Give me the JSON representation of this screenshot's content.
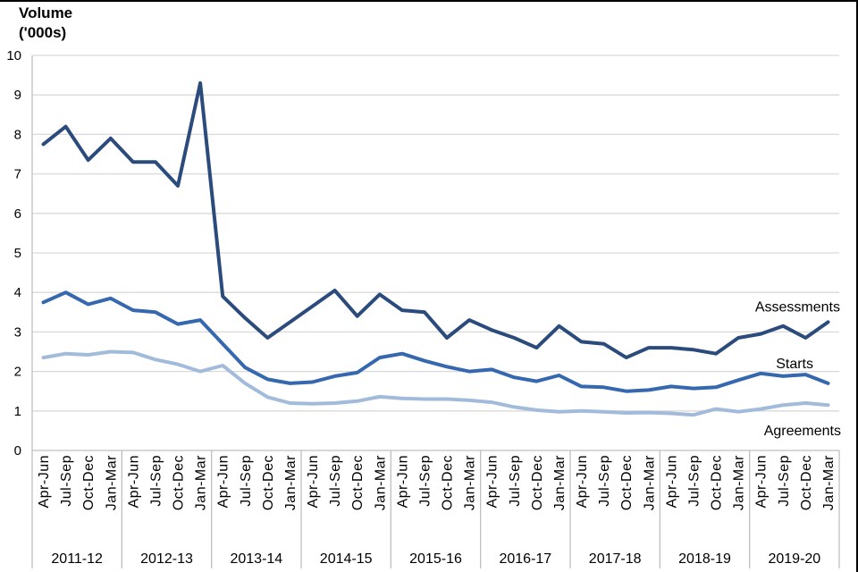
{
  "figure": {
    "title_line1": "Volume",
    "title_line2": "('000s)"
  },
  "chart_data": {
    "type": "line",
    "title": "Volume ('000s)",
    "ylabel": "Volume ('000s)",
    "xlabel": "",
    "ylim": [
      0,
      10
    ],
    "yticks": [
      0,
      1,
      2,
      3,
      4,
      5,
      6,
      7,
      8,
      9,
      10
    ],
    "grid": true,
    "legend_position": "inline-right-of-lines",
    "years": [
      "2011-12",
      "2012-13",
      "2013-14",
      "2014-15",
      "2015-16",
      "2016-17",
      "2017-18",
      "2018-19",
      "2019-20"
    ],
    "quarters_per_year": [
      "Apr-Jun",
      "Jul-Sep",
      "Oct-Dec",
      "Jan-Mar"
    ],
    "series": [
      {
        "name": "Assessments",
        "color": "#2a4b7c",
        "values": [
          7.75,
          8.2,
          7.35,
          7.9,
          7.3,
          7.3,
          6.7,
          9.3,
          3.9,
          3.35,
          2.85,
          3.25,
          3.65,
          4.05,
          3.4,
          3.95,
          3.55,
          3.5,
          2.85,
          3.3,
          3.05,
          2.85,
          2.6,
          3.15,
          2.75,
          2.7,
          2.35,
          2.6,
          2.6,
          2.55,
          2.45,
          2.85,
          2.95,
          3.15,
          2.85,
          3.25
        ]
      },
      {
        "name": "Starts",
        "color": "#3568af",
        "values": [
          3.75,
          4.0,
          3.7,
          3.85,
          3.55,
          3.5,
          3.2,
          3.3,
          2.7,
          2.1,
          1.8,
          1.7,
          1.73,
          1.88,
          1.97,
          2.35,
          2.45,
          2.27,
          2.12,
          2.0,
          2.05,
          1.85,
          1.75,
          1.9,
          1.62,
          1.6,
          1.5,
          1.53,
          1.62,
          1.57,
          1.6,
          1.78,
          1.95,
          1.88,
          1.92,
          1.7
        ]
      },
      {
        "name": "Agreements",
        "color": "#a2bbdb",
        "values": [
          2.35,
          2.45,
          2.42,
          2.5,
          2.48,
          2.3,
          2.18,
          2.0,
          2.15,
          1.7,
          1.35,
          1.2,
          1.18,
          1.2,
          1.25,
          1.36,
          1.32,
          1.3,
          1.3,
          1.27,
          1.22,
          1.1,
          1.02,
          0.98,
          1.0,
          0.98,
          0.95,
          0.96,
          0.94,
          0.9,
          1.05,
          0.98,
          1.05,
          1.15,
          1.2,
          1.15
        ]
      }
    ],
    "colors": {
      "gridline": "#d9d9d9",
      "axis": "#bfbfbf",
      "text": "#000000",
      "frame_border": "#000000"
    }
  }
}
